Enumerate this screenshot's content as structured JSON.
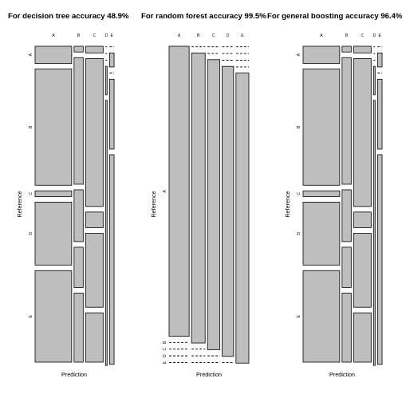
{
  "chart_data": [
    {
      "type": "mosaic",
      "title": "For decision tree accuracy 48.9%",
      "xlabel": "Prediction",
      "ylabel": "Reference",
      "reference_classes": [
        "A",
        "B",
        "C",
        "D",
        "E"
      ],
      "prediction_classes": [
        "A",
        "B",
        "C",
        "D",
        "E"
      ],
      "column_widths": [
        48,
        12,
        23,
        1,
        6
      ],
      "cells": [
        [
          9,
          1,
          3,
          0,
          0
        ],
        [
          61,
          22,
          66,
          0,
          1
        ],
        [
          3,
          9,
          7,
          0,
          0
        ],
        [
          33,
          7,
          33,
          3,
          5
        ],
        [
          48,
          12,
          22,
          28,
          15
        ]
      ]
    },
    {
      "type": "mosaic",
      "title": "For random forest accuracy 99.5%",
      "xlabel": "Prediction",
      "ylabel": "Reference",
      "reference_classes": [
        "A",
        "B",
        "C",
        "D",
        "E"
      ],
      "prediction_classes": [
        "A",
        "B",
        "C",
        "D",
        "E"
      ],
      "column_widths": [
        28,
        19,
        17,
        16,
        18
      ],
      "cells": [
        [
          100,
          0.3,
          0.3,
          0.3,
          0.3
        ],
        [
          0.3,
          100,
          0.3,
          0.3,
          0.3
        ],
        [
          0.3,
          0.3,
          100,
          0.3,
          0.3
        ],
        [
          0.3,
          0.3,
          0.3,
          100,
          0.3
        ],
        [
          0.3,
          0.3,
          0.3,
          0.3,
          100
        ]
      ]
    },
    {
      "type": "mosaic",
      "title": "For general boosting accuracy 96.4%",
      "xlabel": "Prediction",
      "ylabel": "Reference",
      "reference_classes": [
        "A",
        "B",
        "C",
        "D",
        "E"
      ],
      "prediction_classes": [
        "A",
        "B",
        "C",
        "D",
        "E"
      ],
      "column_widths": [
        48,
        12,
        23,
        1,
        6
      ],
      "cells": [
        [
          9,
          1,
          3,
          0,
          0
        ],
        [
          61,
          22,
          66,
          0,
          1
        ],
        [
          3,
          9,
          7,
          0,
          0
        ],
        [
          33,
          7,
          33,
          3,
          5
        ],
        [
          48,
          12,
          22,
          28,
          15
        ]
      ]
    }
  ]
}
